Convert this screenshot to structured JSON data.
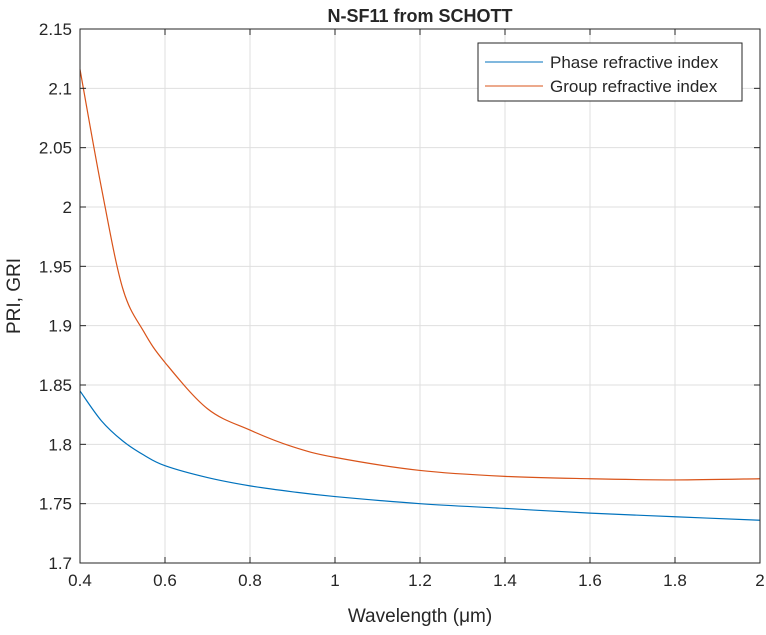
{
  "chart_data": {
    "type": "line",
    "title": "N-SF11 from SCHOTT",
    "xlabel": "Wavelength (μm)",
    "ylabel": "PRI, GRI",
    "xlim": [
      0.4,
      2
    ],
    "ylim": [
      1.7,
      2.15
    ],
    "xticks": [
      0.4,
      0.6,
      0.8,
      1,
      1.2,
      1.4,
      1.6,
      1.8,
      2
    ],
    "xtick_labels": [
      "0.4",
      "0.6",
      "0.8",
      "1",
      "1.2",
      "1.4",
      "1.6",
      "1.8",
      "2"
    ],
    "yticks": [
      1.7,
      1.75,
      1.8,
      1.85,
      1.9,
      1.95,
      2,
      2.05,
      2.1,
      2.15
    ],
    "ytick_labels": [
      "1.7",
      "1.75",
      "1.8",
      "1.85",
      "1.9",
      "1.95",
      "2",
      "2.05",
      "2.1",
      "2.15"
    ],
    "grid": true,
    "legend_position": "top-right",
    "x": [
      0.4,
      0.45,
      0.5,
      0.55,
      0.6,
      0.7,
      0.8,
      0.9,
      1.0,
      1.2,
      1.4,
      1.6,
      1.8,
      2.0
    ],
    "series": [
      {
        "name": "Phase refractive index",
        "color": "#0072BD",
        "values": [
          1.845,
          1.82,
          1.803,
          1.791,
          1.782,
          1.772,
          1.765,
          1.76,
          1.756,
          1.75,
          1.746,
          1.742,
          1.739,
          1.736
        ]
      },
      {
        "name": "Group refractive index",
        "color": "#D95319",
        "values": [
          2.116,
          2.017,
          1.932,
          1.895,
          1.869,
          1.83,
          1.812,
          1.798,
          1.789,
          1.778,
          1.773,
          1.771,
          1.77,
          1.771
        ]
      }
    ]
  }
}
